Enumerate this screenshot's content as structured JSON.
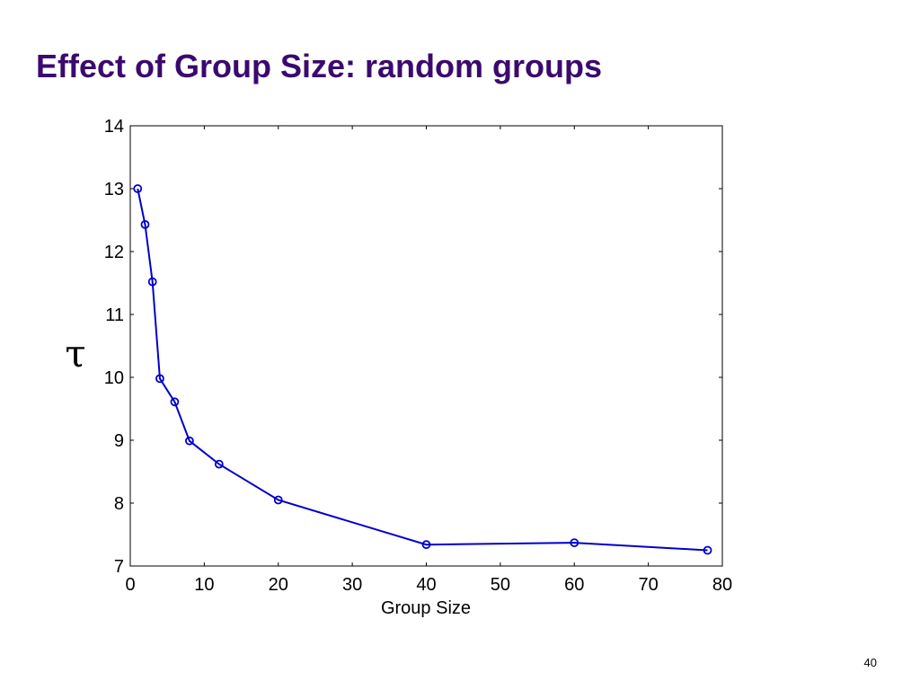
{
  "slide": {
    "title": "Effect of Group Size: random groups",
    "page_number": "40"
  },
  "chart_data": {
    "type": "line",
    "title": "",
    "xlabel": "Group Size",
    "ylabel": "τ",
    "xlim": [
      0,
      80
    ],
    "ylim": [
      7,
      14
    ],
    "xticks": [
      0,
      10,
      20,
      30,
      40,
      50,
      60,
      70,
      80
    ],
    "yticks": [
      7,
      8,
      9,
      10,
      11,
      12,
      13,
      14
    ],
    "grid": false,
    "legend": "none",
    "marker": "circle",
    "series": [
      {
        "color": "#0000cc",
        "x": [
          1,
          2,
          3,
          4,
          6,
          8,
          12,
          20,
          40,
          60,
          78
        ],
        "y": [
          13.0,
          12.43,
          11.52,
          9.98,
          9.61,
          8.99,
          8.62,
          8.05,
          7.34,
          7.37,
          7.25
        ]
      }
    ]
  }
}
